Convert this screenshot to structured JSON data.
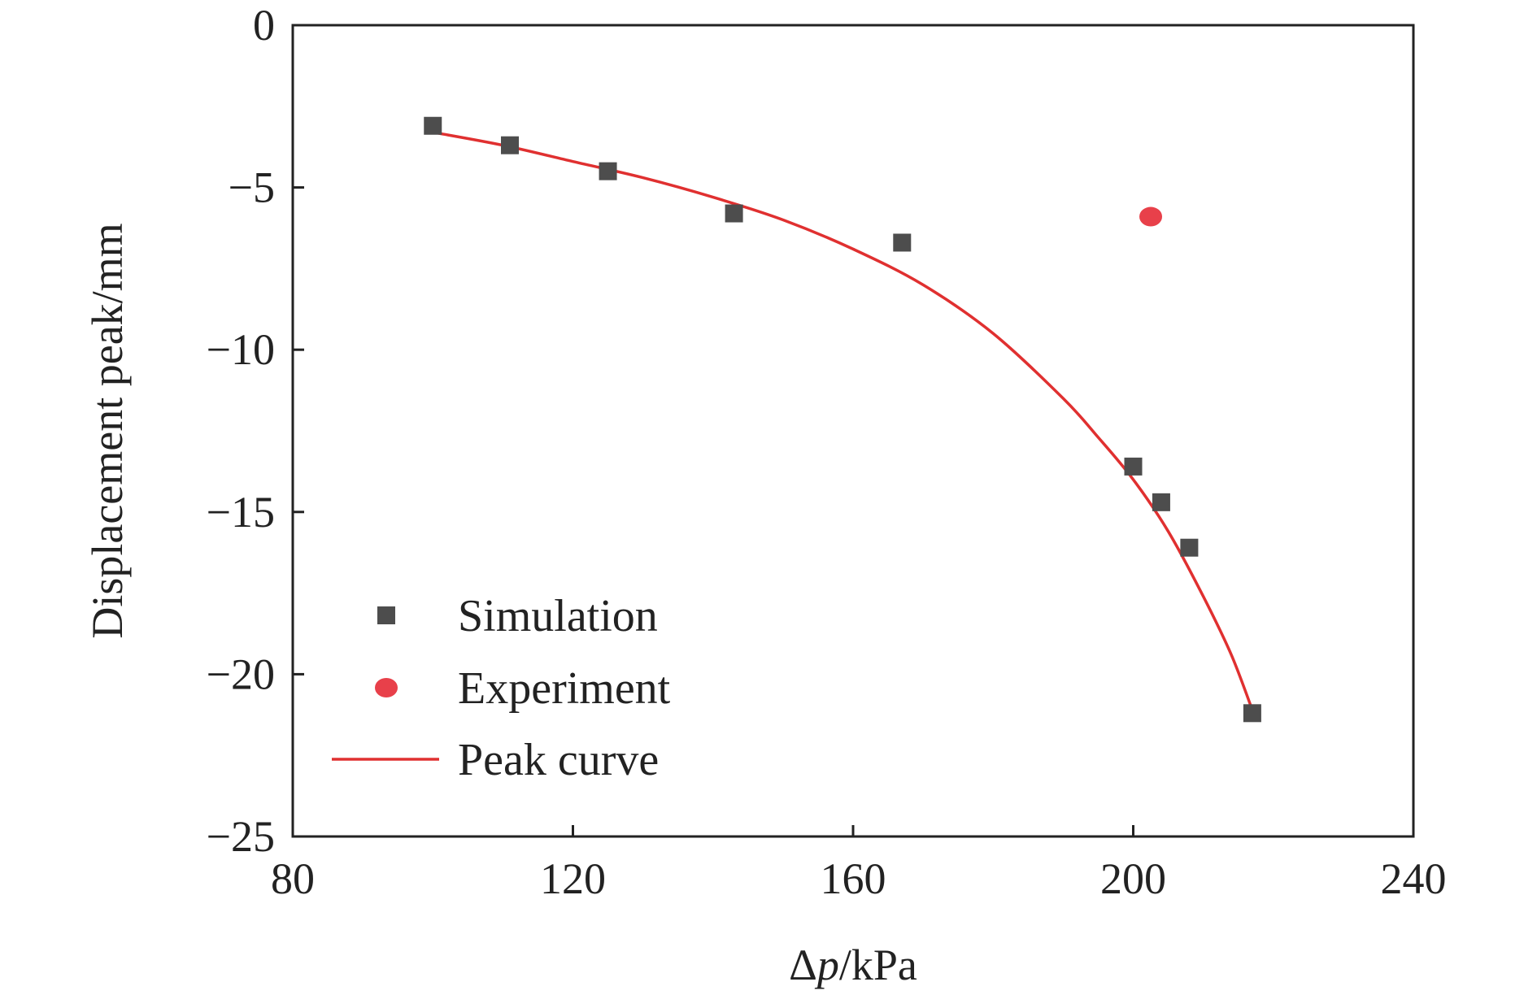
{
  "chart_data": {
    "type": "scatter",
    "title": "",
    "xlabel": "Δp/kPa",
    "xlabel_parts": {
      "pre": "Δ",
      "italic": "p",
      "post": "/kPa"
    },
    "ylabel": "Displacement peak/mm",
    "xlim": [
      80,
      240
    ],
    "ylim": [
      -25,
      0
    ],
    "xticks": [
      80,
      120,
      160,
      200,
      240
    ],
    "yticks": [
      0,
      -5,
      -10,
      -15,
      -20,
      -25
    ],
    "xtick_labels": [
      "80",
      "120",
      "160",
      "200",
      "240"
    ],
    "ytick_labels": [
      "0",
      "−5",
      "−10",
      "−15",
      "−20",
      "−25"
    ],
    "grid": false,
    "legend_position": "lower-left",
    "series": [
      {
        "name": "Simulation",
        "kind": "scatter",
        "marker": "square",
        "color": "#4d4d4d",
        "x": [
          100,
          111,
          125,
          143,
          167,
          200,
          204,
          208,
          217
        ],
        "y": [
          -3.1,
          -3.7,
          -4.5,
          -5.8,
          -6.7,
          -13.6,
          -14.7,
          -16.1,
          -21.2
        ]
      },
      {
        "name": "Experiment",
        "kind": "scatter",
        "marker": "circle",
        "color": "#e8404a",
        "x": [
          202.5
        ],
        "y": [
          -5.9
        ]
      },
      {
        "name": "Peak curve",
        "kind": "line",
        "color": "#e03030",
        "x": [
          100,
          110,
          120,
          130,
          140,
          150,
          160,
          170,
          180,
          190,
          195,
          200,
          205,
          210,
          214,
          217
        ],
        "y": [
          -3.3,
          -3.7,
          -4.2,
          -4.7,
          -5.3,
          -6.0,
          -6.9,
          -8.0,
          -9.5,
          -11.5,
          -12.7,
          -14.0,
          -15.6,
          -17.6,
          -19.4,
          -21.1
        ]
      }
    ]
  }
}
